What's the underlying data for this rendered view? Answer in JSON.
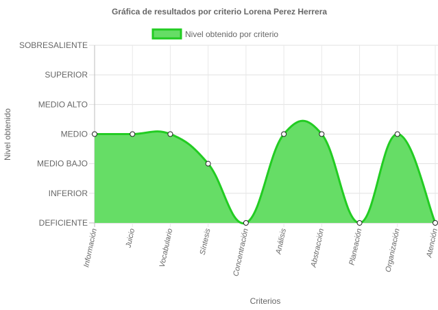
{
  "chart_data": {
    "type": "area",
    "title": "Gráfica de resultados por criterio Lorena Perez Herrera",
    "xlabel": "Criterios",
    "ylabel": "Nivel obtenido",
    "categories": [
      "Información",
      "Juicio",
      "Vocabulario",
      "Síntesis",
      "Concentración",
      "Análisis",
      "Abstracción",
      "Planeación",
      "Organización",
      "Atención"
    ],
    "y_levels": [
      "DEFICIENTE",
      "INFERIOR",
      "MEDIO BAJO",
      "MEDIO",
      "MEDIO ALTO",
      "SUPERIOR",
      "SOBRESALIENTE"
    ],
    "ylim": [
      0,
      6
    ],
    "series": [
      {
        "name": "Nivel obtenido por criterio",
        "values": [
          3,
          3,
          3,
          2,
          0,
          3,
          3,
          0,
          3,
          0
        ],
        "value_labels": [
          "MEDIO",
          "MEDIO",
          "MEDIO",
          "MEDIO BAJO",
          "DEFICIENTE",
          "MEDIO",
          "MEDIO",
          "DEFICIENTE",
          "MEDIO",
          "DEFICIENTE"
        ],
        "fill_color": "#66dd66",
        "line_color": "#22cc22"
      }
    ],
    "grid": true,
    "legend": "top-center"
  }
}
